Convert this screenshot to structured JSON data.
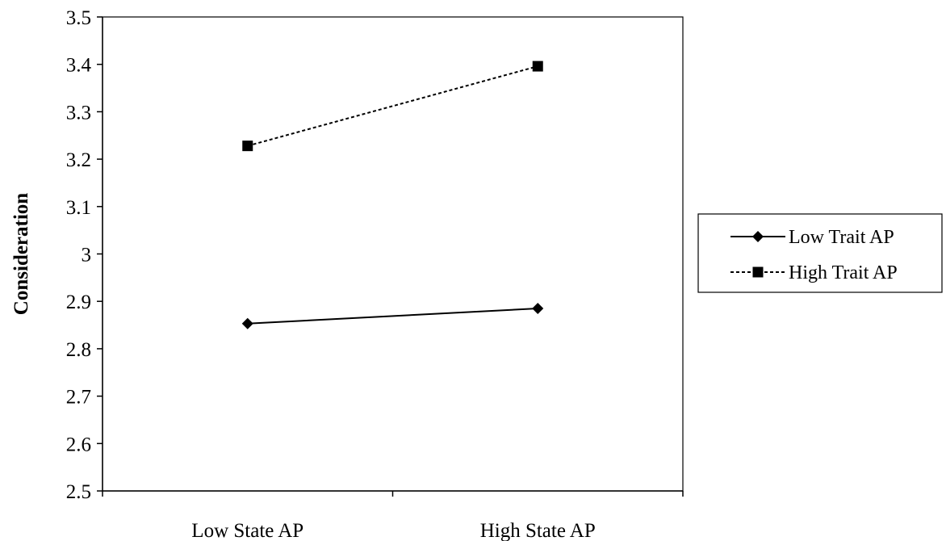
{
  "chart_data": {
    "type": "line",
    "title": "",
    "xlabel": "",
    "ylabel": "Consideration",
    "categories": [
      "Low State AP",
      "High State AP"
    ],
    "ylim": [
      2.5,
      3.5
    ],
    "yticks": [
      "2.5",
      "2.6",
      "2.7",
      "2.8",
      "2.9",
      "3",
      "3.1",
      "3.2",
      "3.3",
      "3.4",
      "3.5"
    ],
    "grid": false,
    "legend_position": "right",
    "series": [
      {
        "name": "Low Trait AP",
        "values": [
          2.853,
          2.885
        ],
        "line_style": "solid",
        "marker": "diamond",
        "color": "#000000"
      },
      {
        "name": "High Trait AP",
        "values": [
          3.228,
          3.396
        ],
        "line_style": "dashed",
        "marker": "square",
        "color": "#000000"
      }
    ]
  }
}
